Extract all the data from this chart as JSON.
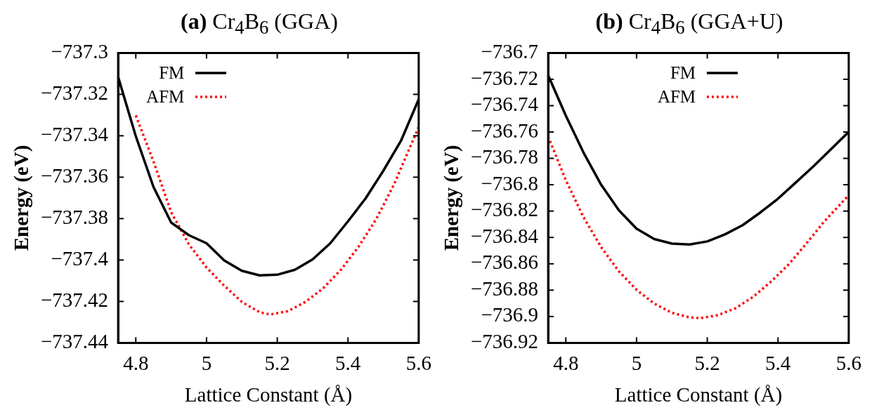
{
  "chart_data": [
    {
      "type": "line",
      "title": "(a) Cr$_{4}$B$_{6}$ (GGA)",
      "xlabel": "Lattice Constant (Å)",
      "ylabel": "Energy (eV)",
      "xlim": [
        4.75,
        5.6
      ],
      "xticks": [
        4.8,
        5,
        5.2,
        5.4,
        5.6
      ],
      "ylim": [
        -737.44,
        -737.3
      ],
      "yticks": [
        {
          "value": -737.44,
          "label": "−737.44"
        },
        {
          "value": -737.42,
          "label": "−737.42"
        },
        {
          "value": -737.4,
          "label": "−737.4"
        },
        {
          "value": -737.38,
          "label": "−737.38"
        },
        {
          "value": -737.36,
          "label": "−737.36"
        },
        {
          "value": -737.34,
          "label": "−737.34"
        },
        {
          "value": -737.32,
          "label": "−737.32"
        },
        {
          "value": -737.3,
          "label": "−737.3"
        }
      ],
      "legend": "top left",
      "marker": "none",
      "series": [
        {
          "name": "FM",
          "color": "#000000",
          "line_style": "solid",
          "x": [
            4.75,
            4.8,
            4.85,
            4.9,
            4.95,
            5.0,
            5.05,
            5.1,
            5.15,
            5.2,
            5.25,
            5.3,
            5.35,
            5.4,
            5.45,
            5.5,
            5.55,
            5.6
          ],
          "values": [
            -737.3116,
            -737.3402,
            -737.3647,
            -737.3819,
            -737.388,
            -737.3919,
            -737.4002,
            -737.4052,
            -737.4074,
            -737.4071,
            -737.4047,
            -737.3997,
            -737.3919,
            -737.3813,
            -737.3702,
            -737.3569,
            -737.3424,
            -737.3224
          ]
        },
        {
          "name": "AFM",
          "color": "#ff0000",
          "line_style": "dotted",
          "x": [
            4.8,
            4.85,
            4.9,
            4.95,
            5.0,
            5.05,
            5.1,
            5.15,
            5.18,
            5.23,
            5.28,
            5.33,
            5.38,
            5.43,
            5.48,
            5.53,
            5.6
          ],
          "values": [
            -737.3302,
            -737.3524,
            -737.3769,
            -737.3924,
            -737.4036,
            -737.4124,
            -737.4202,
            -737.4252,
            -737.4263,
            -737.4247,
            -737.4202,
            -737.4136,
            -737.4047,
            -737.3936,
            -737.3802,
            -737.3636,
            -737.3358
          ]
        }
      ]
    },
    {
      "type": "line",
      "title": "(b) Cr$_{4}$B$_{6}$ (GGA+U)",
      "xlabel": "Lattice Constant (Å)",
      "ylabel": "Energy (eV)",
      "xlim": [
        4.75,
        5.6
      ],
      "xticks": [
        4.8,
        5,
        5.2,
        5.4,
        5.6
      ],
      "ylim": [
        -736.92,
        -736.7
      ],
      "yticks": [
        {
          "value": -736.92,
          "label": "−736.92"
        },
        {
          "value": -736.9,
          "label": "−736.9"
        },
        {
          "value": -736.88,
          "label": "−736.88"
        },
        {
          "value": -736.86,
          "label": "−736.86"
        },
        {
          "value": -736.84,
          "label": "−736.84"
        },
        {
          "value": -736.82,
          "label": "−736.82"
        },
        {
          "value": -736.8,
          "label": "−736.8"
        },
        {
          "value": -736.78,
          "label": "−736.78"
        },
        {
          "value": -736.76,
          "label": "−736.76"
        },
        {
          "value": -736.74,
          "label": "−736.74"
        },
        {
          "value": -736.72,
          "label": "−736.72"
        },
        {
          "value": -736.7,
          "label": "−736.7"
        }
      ],
      "legend": "top",
      "marker": "none",
      "series": [
        {
          "name": "FM",
          "color": "#000000",
          "line_style": "solid",
          "x": [
            4.75,
            4.8,
            4.85,
            4.9,
            4.95,
            5.0,
            5.05,
            5.1,
            5.15,
            5.2,
            5.25,
            5.3,
            5.35,
            5.4,
            5.45,
            5.5,
            5.55,
            5.6
          ],
          "values": [
            -736.717,
            -736.7476,
            -736.7756,
            -736.8001,
            -736.8194,
            -736.8334,
            -736.8412,
            -736.8447,
            -736.8453,
            -736.843,
            -736.8377,
            -736.8307,
            -736.8211,
            -736.8106,
            -736.7984,
            -736.7861,
            -736.773,
            -736.7599
          ]
        },
        {
          "name": "AFM",
          "color": "#ff0000",
          "line_style": "dotted",
          "x": [
            4.75,
            4.8,
            4.85,
            4.9,
            4.95,
            5.0,
            5.05,
            5.1,
            5.15,
            5.18,
            5.23,
            5.28,
            5.33,
            5.38,
            5.43,
            5.48,
            5.53,
            5.6
          ],
          "values": [
            -736.7634,
            -736.7966,
            -736.8246,
            -736.8474,
            -736.8657,
            -736.8797,
            -736.8902,
            -736.8972,
            -736.9007,
            -736.9013,
            -736.899,
            -736.8937,
            -736.885,
            -736.8736,
            -736.8605,
            -736.8447,
            -736.8281,
            -736.808
          ]
        }
      ]
    }
  ]
}
